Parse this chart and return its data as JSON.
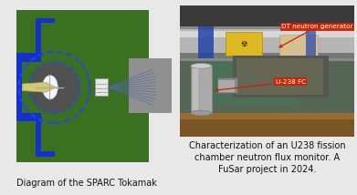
{
  "bg_color": "#e8e8e8",
  "left_panel": {
    "outer_bg": "#909090",
    "inner_bg": "#3a7020",
    "caption": "Diagram of the SPARC Tokamak",
    "caption_fontsize": 7.0,
    "tc": {
      "blue_solid": "#1133cc",
      "dashed_ring": "#2244ee",
      "inner_dark": "#505050",
      "plasma_white": "#f0f0ff",
      "beam_yellow": "#d4c870",
      "det_bg": "#e0e0e0",
      "ray_color": "#5566aa"
    }
  },
  "right_panel": {
    "caption_line1": "Characterization of an U238 fission",
    "caption_line2": "chamber neutron flux monitor. A",
    "caption_line3": "FuSar project in 2024.",
    "caption_fontsize": 7.0,
    "label_dt": "DT neutron generator",
    "label_u238": "U-238 FC",
    "label_bg": "#cc2200"
  }
}
